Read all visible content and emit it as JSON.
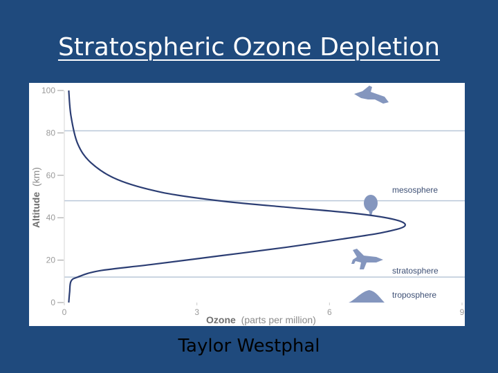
{
  "slide": {
    "title": "Stratospheric Ozone Depletion",
    "author": "Taylor Westphal"
  },
  "colors": {
    "background": "#1f4a7d",
    "profile_line": "#2b3d73",
    "boundary_line": "#b9c7d8",
    "icon_fill": "#8496be"
  },
  "chart_data": {
    "type": "line",
    "title": "",
    "xlabel": "Ozone",
    "xlabel_unit": "(parts per million)",
    "ylabel": "Altitude",
    "ylabel_unit": "(km)",
    "xlim": [
      0,
      9
    ],
    "ylim": [
      0,
      100
    ],
    "xticks": [
      "0",
      "3",
      "6",
      "9"
    ],
    "yticks": [
      "0",
      "20",
      "40",
      "60",
      "80",
      "100"
    ],
    "grid": false,
    "series": [
      {
        "x": [
          0.1,
          0.12,
          0.15,
          0.3,
          0.8,
          2.0,
          3.5,
          5.0,
          6.3,
          7.2,
          7.7,
          7.5,
          6.6,
          5.0,
          3.5,
          2.2,
          1.2,
          0.6,
          0.3,
          0.15,
          0.1
        ],
        "y": [
          0,
          5,
          10,
          12,
          15,
          18,
          22,
          26,
          30,
          33,
          36,
          39,
          42,
          45,
          48,
          52,
          58,
          66,
          75,
          88,
          100
        ]
      }
    ],
    "layer_boundaries": [
      {
        "altitude": 12,
        "label": "troposphere"
      },
      {
        "altitude": 48,
        "label": "stratosphere"
      },
      {
        "altitude": 81,
        "label": "mesosphere"
      }
    ],
    "icons": [
      "mountain-icon",
      "airplane-icon",
      "balloon-icon",
      "space-shuttle-icon"
    ]
  }
}
